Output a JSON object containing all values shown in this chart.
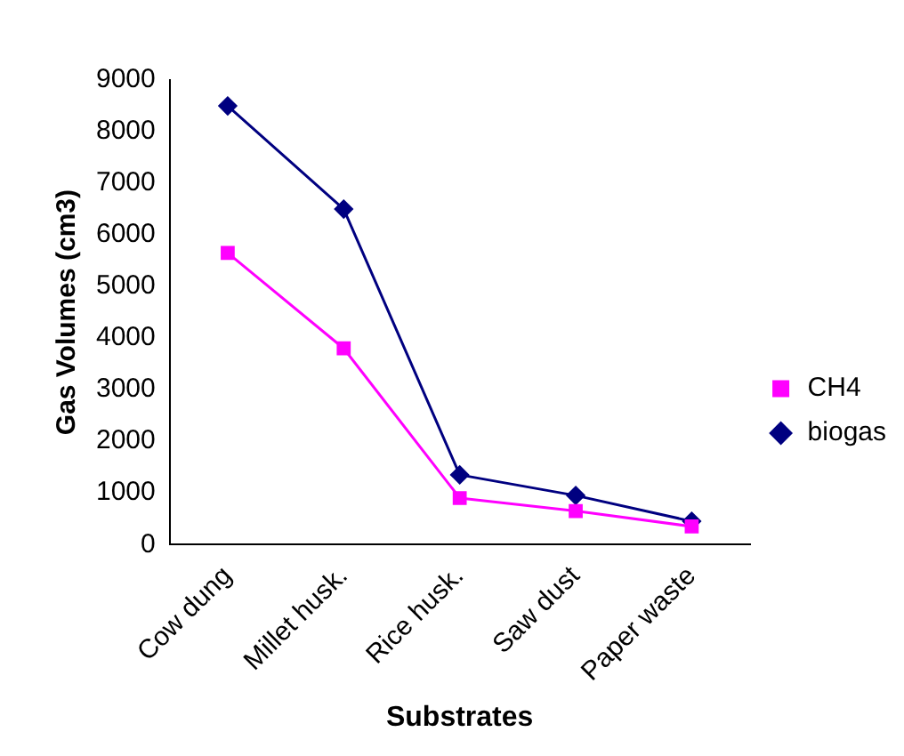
{
  "chart_data": {
    "type": "line",
    "xlabel": "Substrates",
    "ylabel": "Gas Volumes (cm3)",
    "categories": [
      "Cow dung",
      "Millet husk.",
      "Rice husk.",
      "Saw dust",
      "Paper waste"
    ],
    "series": [
      {
        "name": "biogas",
        "color": "#000080",
        "marker": "diamond",
        "values": [
          8500,
          6500,
          1350,
          950,
          450
        ]
      },
      {
        "name": "CH4",
        "color": "#ff00ff",
        "marker": "square",
        "values": [
          5650,
          3800,
          900,
          650,
          350
        ]
      }
    ],
    "ylim": [
      0,
      9000
    ],
    "yticks": [
      0,
      1000,
      2000,
      3000,
      4000,
      5000,
      6000,
      7000,
      8000,
      9000
    ],
    "grid": false,
    "legend": "right",
    "line_style": "solid"
  }
}
